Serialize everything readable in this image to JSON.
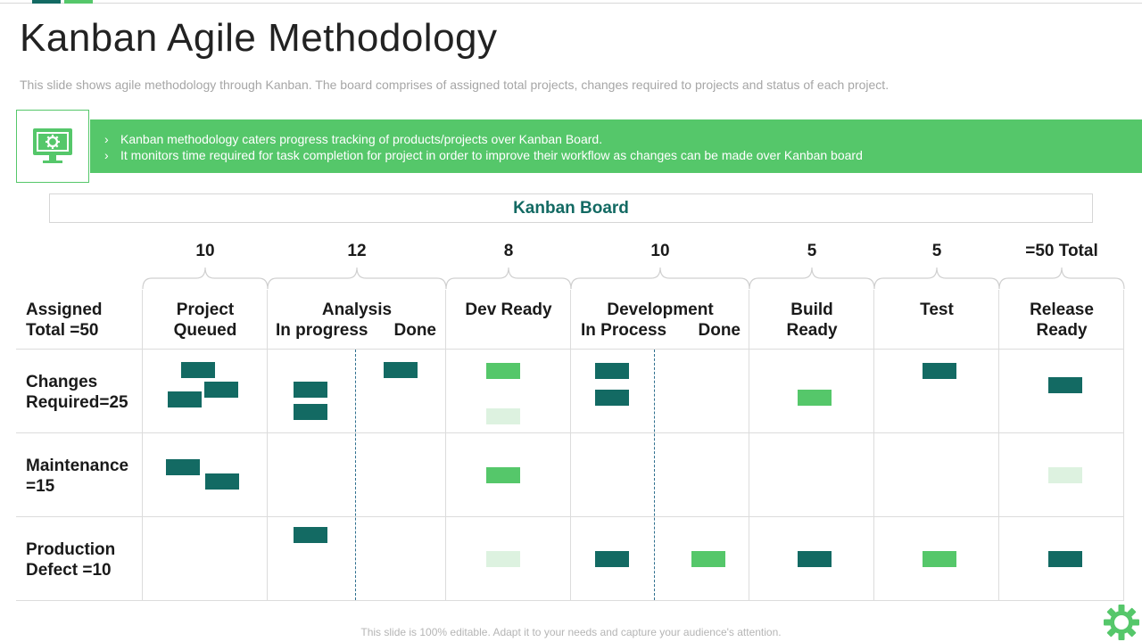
{
  "slide": {
    "title": "Kanban Agile Methodology",
    "subtitle": "This slide shows agile methodology through Kanban. The board comprises of assigned total projects, changes required to projects and status of each project.",
    "footer": "This slide is 100% editable. Adapt it to your needs and capture your audience's attention."
  },
  "banner": {
    "icon": "monitor-gear-icon",
    "bullets": [
      "Kanban methodology caters progress tracking of products/projects over Kanban Board.",
      "It monitors time required for task completion for project in order to improve their workflow as changes can be made over Kanban board"
    ]
  },
  "board": {
    "title": "Kanban Board",
    "counts": [
      "10",
      "12",
      "8",
      "10",
      "5",
      "5",
      "=50 Total"
    ],
    "headers": {
      "assigned": [
        "Assigned",
        "Total =50"
      ],
      "project_queued": [
        "Project",
        "Queued"
      ],
      "analysis": [
        "Analysis",
        "In progress",
        "Done"
      ],
      "dev_ready": [
        "Dev Ready"
      ],
      "development": [
        "Development",
        "In Process",
        "Done"
      ],
      "build_ready": [
        "Build",
        "Ready"
      ],
      "test": [
        "Test"
      ],
      "release_ready": [
        "Release",
        "Ready"
      ]
    },
    "rows": [
      [
        "Changes",
        "Required=25"
      ],
      [
        "Maintenance",
        "=15"
      ],
      [
        "Production",
        "Defect =10"
      ]
    ]
  },
  "colors": {
    "accent_green": "#55c76a",
    "teal": "#136a63",
    "light_green": "#ddf2e0"
  }
}
